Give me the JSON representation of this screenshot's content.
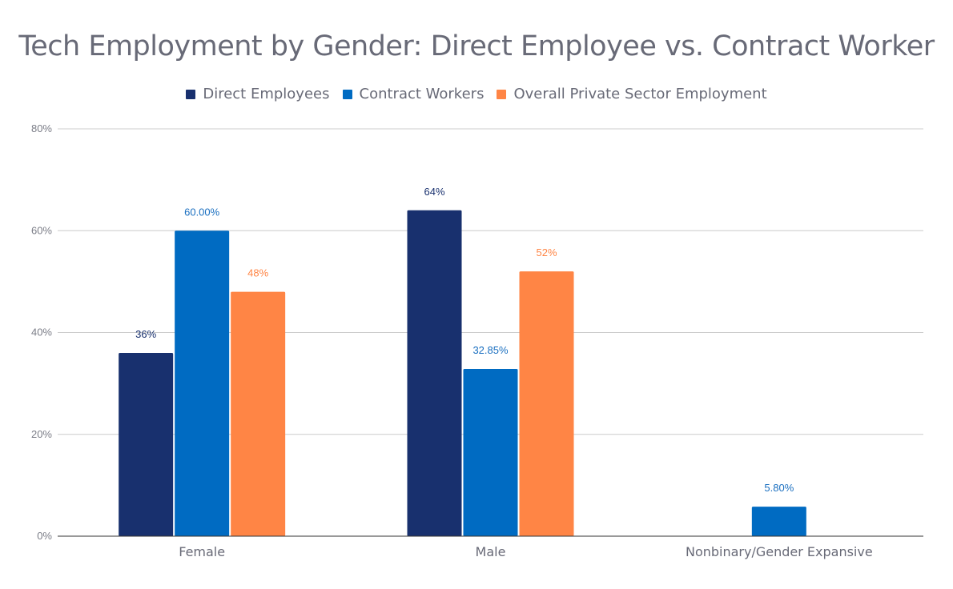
{
  "chart_data": {
    "type": "bar",
    "title": "Tech Employment by Gender: Direct Employee vs. Contract Worker",
    "xlabel": "",
    "ylabel": "",
    "categories": [
      "Female",
      "Male",
      "Nonbinary/Gender Expansive"
    ],
    "series": [
      {
        "name": "Direct Employees",
        "color": "#18306e",
        "values": [
          36,
          64,
          null
        ],
        "labels": [
          "36%",
          "64%",
          ""
        ]
      },
      {
        "name": "Contract Workers",
        "color": "#006bc2",
        "values": [
          60,
          32.85,
          5.8
        ],
        "labels": [
          "60.00%",
          "32.85%",
          "5.80%"
        ]
      },
      {
        "name": "Overall Private Sector Employment",
        "color": "#ff8545",
        "values": [
          48,
          52,
          null
        ],
        "labels": [
          "48%",
          "52%",
          ""
        ]
      }
    ],
    "ylim": [
      0,
      80
    ],
    "yticks": [
      0,
      20,
      40,
      60,
      80
    ],
    "ytick_labels": [
      "0%",
      "20%",
      "40%",
      "60%",
      "80%"
    ],
    "grid": true,
    "legend_position": "top-center"
  }
}
